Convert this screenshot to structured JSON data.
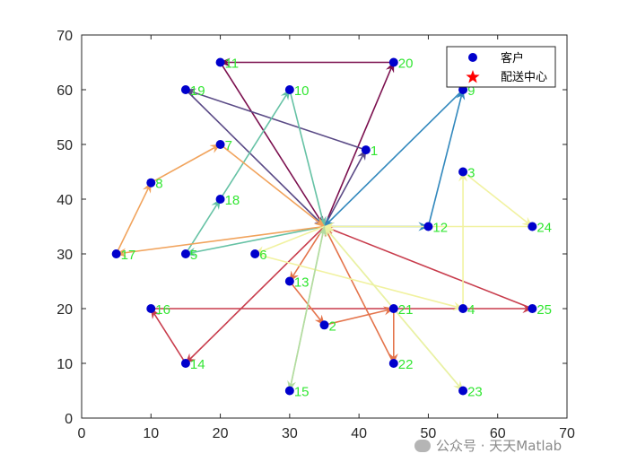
{
  "chart_data": {
    "type": "scatter",
    "title": "",
    "xlabel": "",
    "ylabel": "",
    "xlim": [
      0,
      70
    ],
    "ylim": [
      0,
      70
    ],
    "xticks": [
      0,
      10,
      20,
      30,
      40,
      50,
      60,
      70
    ],
    "yticks": [
      0,
      10,
      20,
      30,
      40,
      50,
      60,
      70
    ],
    "grid": false,
    "legend": {
      "placement": "top-right",
      "entries": [
        {
          "label": "客户",
          "marker": "circle",
          "color": "#0000cc"
        },
        {
          "label": "配送中心",
          "marker": "pentagram",
          "color": "#ff0000"
        }
      ]
    },
    "depot": {
      "x": 35,
      "y": 35
    },
    "customers": [
      {
        "id": "1",
        "x": 41,
        "y": 49
      },
      {
        "id": "2",
        "x": 35,
        "y": 17
      },
      {
        "id": "3",
        "x": 55,
        "y": 45
      },
      {
        "id": "4",
        "x": 55,
        "y": 20
      },
      {
        "id": "5",
        "x": 15,
        "y": 30
      },
      {
        "id": "6",
        "x": 25,
        "y": 30
      },
      {
        "id": "7",
        "x": 20,
        "y": 50
      },
      {
        "id": "8",
        "x": 10,
        "y": 43
      },
      {
        "id": "9",
        "x": 55,
        "y": 60
      },
      {
        "id": "10",
        "x": 30,
        "y": 60
      },
      {
        "id": "11",
        "x": 20,
        "y": 65
      },
      {
        "id": "12",
        "x": 50,
        "y": 35
      },
      {
        "id": "13",
        "x": 30,
        "y": 25
      },
      {
        "id": "14",
        "x": 15,
        "y": 10
      },
      {
        "id": "15",
        "x": 30,
        "y": 5
      },
      {
        "id": "16",
        "x": 10,
        "y": 20
      },
      {
        "id": "17",
        "x": 5,
        "y": 30
      },
      {
        "id": "18",
        "x": 20,
        "y": 40
      },
      {
        "id": "19",
        "x": 15,
        "y": 60
      },
      {
        "id": "20",
        "x": 45,
        "y": 65
      },
      {
        "id": "21",
        "x": 45,
        "y": 20
      },
      {
        "id": "22",
        "x": 45,
        "y": 10
      },
      {
        "id": "23",
        "x": 55,
        "y": 5
      },
      {
        "id": "24",
        "x": 65,
        "y": 35
      },
      {
        "id": "25",
        "x": 65,
        "y": 20
      }
    ],
    "routes": [
      {
        "color": "#7b0f4e",
        "path": [
          "depot",
          "20",
          "11",
          "depot"
        ]
      },
      {
        "color": "#5a4a86",
        "path": [
          "depot",
          "1",
          "19",
          "depot"
        ]
      },
      {
        "color": "#3288bd",
        "path": [
          "depot",
          "12",
          "9",
          "depot"
        ]
      },
      {
        "color": "#66c2a5",
        "path": [
          "depot",
          "5",
          "18",
          "10",
          "depot"
        ]
      },
      {
        "color": "#f1a35c",
        "path": [
          "depot",
          "17",
          "8",
          "7",
          "depot"
        ]
      },
      {
        "color": "#c83c4c",
        "path": [
          "depot",
          "14",
          "16",
          "25",
          "depot"
        ]
      },
      {
        "color": "#e4734a",
        "path": [
          "depot",
          "13",
          "2",
          "21",
          "22",
          "depot"
        ]
      },
      {
        "color": "#f1f2a0",
        "path": [
          "depot",
          "6",
          "4",
          "3",
          "24",
          "depot"
        ]
      },
      {
        "color": "#e9f1a4",
        "path": [
          "depot",
          "23",
          "depot"
        ]
      },
      {
        "color": "#b3dca0",
        "path": [
          "depot",
          "15",
          "depot"
        ]
      }
    ]
  },
  "watermark": {
    "text": "公众号 · 天天Matlab"
  }
}
